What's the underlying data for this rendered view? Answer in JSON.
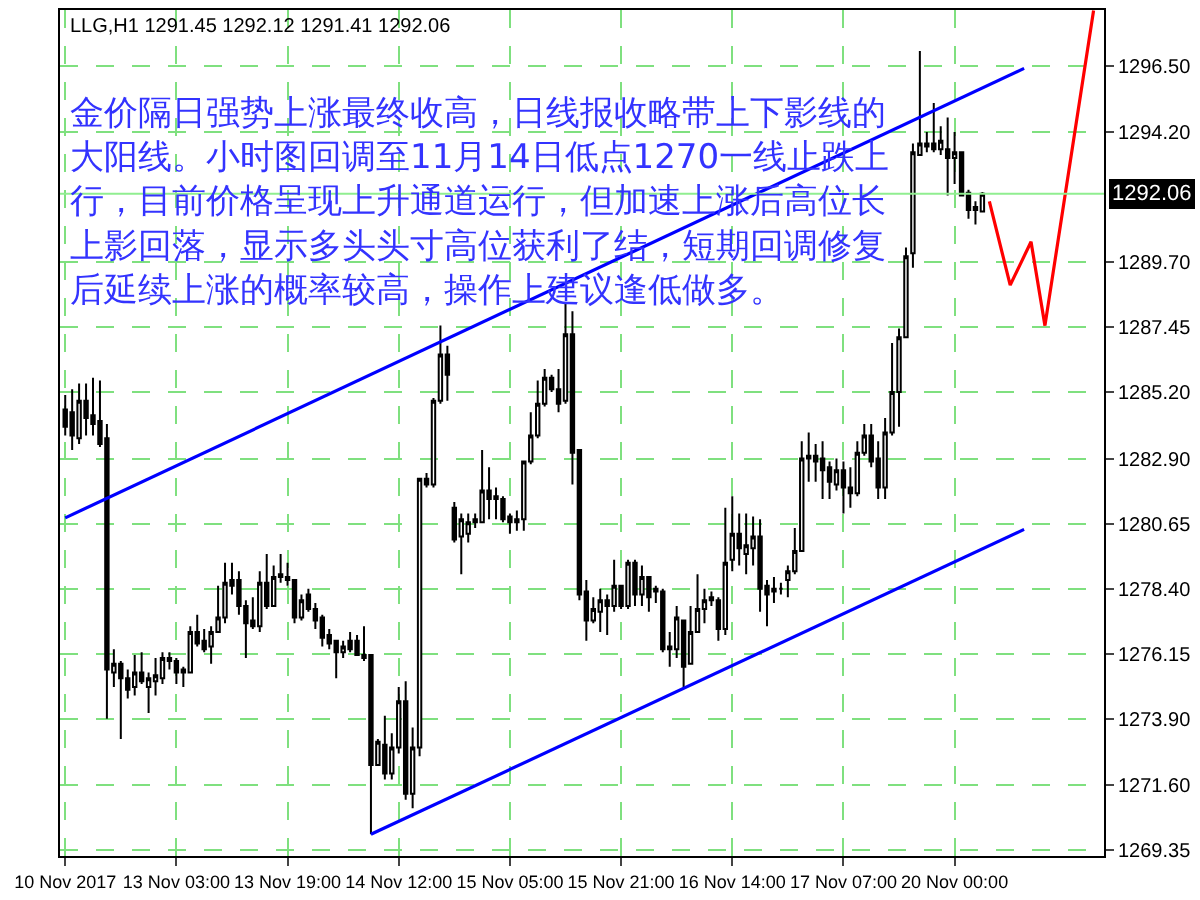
{
  "chart_data": {
    "type": "candlestick",
    "color": "#000000",
    "annotations": [
      "LLG,H1 1291.45 1292.12 1291.41 1292.06",
      "金价隔日强势上涨最终收高，日线报收略带上下影线的大阳线。小时图回调至11月14日低点1270一线止跌上行，目前价格呈现上升通道运行，但加速上涨后高位长上影回落，显示多头头寸高位获利了结，短期回调修复后延续上涨的概率较高，操作上建议逢低做多。"
    ],
    "categories": [
      "10 Nov 2017",
      null,
      null,
      null,
      null,
      null,
      null,
      null,
      null,
      null,
      null,
      null,
      null,
      null,
      null,
      null,
      "13 Nov 03:00",
      null,
      null,
      null,
      null,
      null,
      null,
      null,
      null,
      null,
      null,
      null,
      null,
      null,
      null,
      null,
      "13 Nov 19:00",
      null,
      null,
      null,
      null,
      null,
      null,
      null,
      null,
      null,
      null,
      null,
      null,
      null,
      null,
      null,
      "14 Nov 12:00",
      null,
      null,
      null,
      null,
      null,
      null,
      null,
      null,
      null,
      null,
      null,
      null,
      null,
      null,
      null,
      "15 Nov 05:00",
      null,
      null,
      null,
      null,
      null,
      null,
      null,
      null,
      null,
      null,
      null,
      null,
      null,
      null,
      null,
      "15 Nov 21:00",
      null,
      null,
      null,
      null,
      null,
      null,
      null,
      null,
      null,
      null,
      null,
      null,
      null,
      null,
      null,
      "16 Nov 14:00",
      null,
      null,
      null,
      null,
      null,
      null,
      null,
      null,
      null,
      null,
      null,
      null,
      null,
      null,
      null,
      "17 Nov 07:00",
      null,
      null,
      null,
      null,
      null,
      null,
      null,
      null,
      null,
      null,
      null,
      null,
      null,
      null,
      null,
      "20 Nov 00:00",
      null,
      null,
      null,
      null,
      null,
      null,
      null,
      null,
      null,
      null,
      null,
      null,
      null,
      null,
      null,
      null,
      null,
      null,
      null,
      null,
      null
    ],
    "ohlc": [
      [
        1284.6,
        1285.1,
        1283.7,
        1284.0
      ],
      [
        1284.5,
        1285.3,
        1283.2,
        1283.7
      ],
      [
        1283.6,
        1285.5,
        1283.4,
        1284.9
      ],
      [
        1284.9,
        1285.5,
        1283.7,
        1284.3
      ],
      [
        1284.4,
        1285.7,
        1283.7,
        1284.1
      ],
      [
        1284.2,
        1285.6,
        1283.3,
        1283.4
      ],
      [
        1283.6,
        1284.1,
        1273.9,
        1275.6
      ],
      [
        1275.5,
        1276.3,
        1275.0,
        1275.8
      ],
      [
        1275.8,
        1275.9,
        1273.2,
        1275.3
      ],
      [
        1275.3,
        1275.6,
        1274.6,
        1274.9
      ],
      [
        1275.0,
        1276.1,
        1274.7,
        1275.5
      ],
      [
        1275.5,
        1276.2,
        1275.1,
        1275.2
      ],
      [
        1275.0,
        1275.5,
        1274.1,
        1275.3
      ],
      [
        1275.2,
        1276.0,
        1274.7,
        1275.4
      ],
      [
        1275.3,
        1276.2,
        1275.1,
        1276.0
      ],
      [
        1275.9,
        1276.2,
        1275.6,
        1276.0
      ],
      [
        1275.9,
        1276.0,
        1275.1,
        1275.5
      ],
      [
        1275.6,
        1275.7,
        1275.0,
        1275.5
      ],
      [
        1275.5,
        1277.1,
        1275.5,
        1276.9
      ],
      [
        1276.9,
        1277.5,
        1276.4,
        1276.5
      ],
      [
        1276.6,
        1277.0,
        1276.2,
        1276.3
      ],
      [
        1276.4,
        1277.1,
        1275.8,
        1276.9
      ],
      [
        1276.9,
        1278.5,
        1276.9,
        1277.4
      ],
      [
        1277.4,
        1279.3,
        1277.2,
        1278.6
      ],
      [
        1278.7,
        1279.3,
        1278.2,
        1278.5
      ],
      [
        1278.7,
        1279.0,
        1277.5,
        1277.8
      ],
      [
        1277.8,
        1278.0,
        1276.0,
        1277.2
      ],
      [
        1277.3,
        1278.1,
        1277.0,
        1277.1
      ],
      [
        1277.1,
        1279.0,
        1276.9,
        1278.6
      ],
      [
        1278.6,
        1279.6,
        1277.7,
        1277.8
      ],
      [
        1277.8,
        1279.2,
        1277.8,
        1278.8
      ],
      [
        1278.8,
        1279.6,
        1278.6,
        1278.9
      ],
      [
        1278.8,
        1279.3,
        1278.5,
        1278.7
      ],
      [
        1278.7,
        1278.7,
        1277.2,
        1277.4
      ],
      [
        1277.4,
        1278.2,
        1277.3,
        1278.0
      ],
      [
        1278.2,
        1278.4,
        1277.6,
        1277.7
      ],
      [
        1277.7,
        1277.9,
        1277.0,
        1277.3
      ],
      [
        1277.4,
        1277.5,
        1276.4,
        1276.7
      ],
      [
        1276.8,
        1277.0,
        1276.3,
        1276.5
      ],
      [
        1276.6,
        1276.6,
        1275.3,
        1276.2
      ],
      [
        1276.2,
        1276.6,
        1276.0,
        1276.4
      ],
      [
        1276.6,
        1276.9,
        1276.2,
        1276.3
      ],
      [
        1276.6,
        1276.8,
        1276.1,
        1276.1
      ],
      [
        1276.1,
        1277.1,
        1275.9,
        1276.0
      ],
      [
        1276.1,
        1276.1,
        1269.9,
        1272.3
      ],
      [
        1272.3,
        1273.2,
        1272.3,
        1273.1
      ],
      [
        1273.0,
        1274.0,
        1271.8,
        1272.0
      ],
      [
        1272.0,
        1273.4,
        1271.8,
        1272.9
      ],
      [
        1272.9,
        1275.0,
        1272.7,
        1274.5
      ],
      [
        1274.5,
        1275.2,
        1271.1,
        1271.3
      ],
      [
        1271.3,
        1273.6,
        1270.8,
        1272.9
      ],
      [
        1272.9,
        1282.2,
        1272.6,
        1282.2
      ],
      [
        1282.2,
        1282.4,
        1281.9,
        1282.0
      ],
      [
        1282.0,
        1285.0,
        1281.9,
        1284.9
      ],
      [
        1284.9,
        1287.5,
        1284.8,
        1286.5
      ],
      [
        1286.5,
        1286.8,
        1284.9,
        1285.8
      ],
      [
        1281.2,
        1281.4,
        1280.0,
        1280.1
      ],
      [
        1280.2,
        1281.0,
        1278.9,
        1280.8
      ],
      [
        1280.3,
        1281.0,
        1280.0,
        1280.7
      ],
      [
        1280.8,
        1281.0,
        1280.5,
        1280.7
      ],
      [
        1280.7,
        1283.2,
        1280.7,
        1281.8
      ],
      [
        1281.8,
        1282.6,
        1280.8,
        1281.5
      ],
      [
        1281.6,
        1281.9,
        1280.8,
        1281.5
      ],
      [
        1281.5,
        1281.6,
        1280.7,
        1280.8
      ],
      [
        1280.9,
        1281.0,
        1280.3,
        1280.7
      ],
      [
        1280.7,
        1281.1,
        1280.4,
        1280.8
      ],
      [
        1280.8,
        1282.8,
        1280.4,
        1282.8
      ],
      [
        1282.8,
        1284.5,
        1282.7,
        1283.7
      ],
      [
        1283.7,
        1285.6,
        1283.6,
        1284.8
      ],
      [
        1284.8,
        1286.0,
        1284.7,
        1285.7
      ],
      [
        1285.7,
        1285.8,
        1285.2,
        1285.3
      ],
      [
        1285.3,
        1286.0,
        1284.5,
        1284.8
      ],
      [
        1284.9,
        1288.3,
        1284.8,
        1287.2
      ],
      [
        1287.2,
        1288.0,
        1282.0,
        1283.1
      ],
      [
        1283.2,
        1283.2,
        1278.0,
        1278.2
      ],
      [
        1278.3,
        1278.7,
        1276.6,
        1277.3
      ],
      [
        1277.3,
        1278.1,
        1277.2,
        1277.7
      ],
      [
        1277.6,
        1278.4,
        1276.9,
        1278.0
      ],
      [
        1278.0,
        1278.2,
        1276.8,
        1277.8
      ],
      [
        1277.8,
        1279.4,
        1277.6,
        1278.5
      ],
      [
        1278.5,
        1278.5,
        1277.7,
        1277.8
      ],
      [
        1277.8,
        1279.4,
        1277.7,
        1279.3
      ],
      [
        1279.3,
        1279.4,
        1277.8,
        1278.2
      ],
      [
        1278.2,
        1279.2,
        1277.8,
        1278.8
      ],
      [
        1278.8,
        1278.8,
        1277.6,
        1278.1
      ],
      [
        1278.4,
        1278.5,
        1277.9,
        1278.3
      ],
      [
        1278.3,
        1278.4,
        1276.2,
        1276.3
      ],
      [
        1276.4,
        1276.9,
        1275.7,
        1276.3
      ],
      [
        1276.3,
        1277.8,
        1276.0,
        1277.4
      ],
      [
        1277.3,
        1277.3,
        1275.0,
        1275.7
      ],
      [
        1275.8,
        1277.8,
        1275.8,
        1276.9
      ],
      [
        1276.9,
        1278.9,
        1276.9,
        1277.7
      ],
      [
        1277.7,
        1278.4,
        1277.2,
        1278.0
      ],
      [
        1278.0,
        1278.3,
        1277.8,
        1278.1
      ],
      [
        1278.0,
        1278.1,
        1276.6,
        1277.0
      ],
      [
        1277.0,
        1281.2,
        1276.8,
        1279.3
      ],
      [
        1279.4,
        1281.6,
        1279.0,
        1280.3
      ],
      [
        1280.3,
        1281.0,
        1279.2,
        1279.8
      ],
      [
        1279.6,
        1281.0,
        1278.9,
        1279.9
      ],
      [
        1279.8,
        1280.9,
        1279.2,
        1280.2
      ],
      [
        1280.2,
        1280.8,
        1277.6,
        1278.4
      ],
      [
        1278.5,
        1278.7,
        1277.1,
        1278.2
      ],
      [
        1278.3,
        1278.8,
        1277.9,
        1278.4
      ],
      [
        1278.4,
        1278.6,
        1278.2,
        1278.4
      ],
      [
        1278.7,
        1279.2,
        1278.1,
        1279.0
      ],
      [
        1279.0,
        1280.5,
        1278.9,
        1279.7
      ],
      [
        1279.7,
        1283.5,
        1279.7,
        1282.9
      ],
      [
        1282.9,
        1283.8,
        1282.1,
        1283.0
      ],
      [
        1283.0,
        1283.4,
        1282.1,
        1282.8
      ],
      [
        1282.9,
        1283.5,
        1281.5,
        1282.5
      ],
      [
        1282.6,
        1282.8,
        1281.5,
        1282.1
      ],
      [
        1282.0,
        1282.9,
        1281.8,
        1282.5
      ],
      [
        1282.5,
        1282.8,
        1281.0,
        1281.9
      ],
      [
        1281.9,
        1282.6,
        1281.2,
        1281.7
      ],
      [
        1281.7,
        1283.5,
        1281.6,
        1283.1
      ],
      [
        1283.1,
        1284.1,
        1283.0,
        1283.7
      ],
      [
        1283.7,
        1284.1,
        1282.6,
        1282.8
      ],
      [
        1282.9,
        1283.5,
        1281.5,
        1281.9
      ],
      [
        1281.9,
        1284.3,
        1281.5,
        1283.8
      ],
      [
        1283.8,
        1286.9,
        1283.7,
        1285.2
      ],
      [
        1285.2,
        1287.4,
        1284.0,
        1287.1
      ],
      [
        1287.1,
        1290.2,
        1287.1,
        1289.9
      ],
      [
        1290.0,
        1293.8,
        1289.5,
        1293.5
      ],
      [
        1293.4,
        1297.0,
        1293.4,
        1293.8
      ],
      [
        1293.8,
        1294.2,
        1293.5,
        1293.7
      ],
      [
        1293.8,
        1295.2,
        1293.5,
        1293.6
      ],
      [
        1293.6,
        1294.4,
        1293.4,
        1293.9
      ],
      [
        1293.6,
        1294.7,
        1292.0,
        1293.3
      ],
      [
        1293.3,
        1294.2,
        1292.4,
        1293.5
      ],
      [
        1293.5,
        1293.5,
        1292.0,
        1292.0
      ],
      [
        1292.1,
        1292.2,
        1291.2,
        1291.5
      ],
      [
        1291.6,
        1291.8,
        1291.0,
        1291.5
      ],
      [
        1291.45,
        1292.12,
        1291.41,
        1292.06
      ],
      null,
      null,
      null,
      null,
      null,
      null,
      null,
      null,
      null,
      null,
      null,
      null,
      null,
      null,
      null,
      null,
      null
    ],
    "series": [
      {
        "type": "line",
        "color": "#0000ff",
        "values": [
          1280.85,
          null,
          null,
          null,
          null,
          null,
          null,
          null,
          null,
          null,
          null,
          null,
          null,
          null,
          null,
          null,
          null,
          null,
          null,
          null,
          null,
          null,
          null,
          null,
          null,
          null,
          null,
          null,
          null,
          null,
          null,
          null,
          null,
          null,
          null,
          null,
          null,
          null,
          null,
          null,
          null,
          null,
          null,
          null,
          null,
          null,
          null,
          null,
          null,
          null,
          null,
          null,
          null,
          null,
          null,
          null,
          null,
          null,
          null,
          null,
          null,
          null,
          null,
          null,
          null,
          null,
          null,
          null,
          null,
          null,
          null,
          null,
          null,
          null,
          null,
          null,
          null,
          null,
          null,
          null,
          null,
          null,
          null,
          null,
          null,
          null,
          null,
          null,
          null,
          null,
          null,
          null,
          null,
          null,
          null,
          null,
          null,
          null,
          null,
          null,
          null,
          null,
          null,
          null,
          null,
          null,
          null,
          null,
          null,
          null,
          null,
          null,
          null,
          null,
          null,
          null,
          null,
          null,
          null,
          null,
          null,
          null,
          null,
          null,
          null,
          null,
          null,
          null,
          null,
          null,
          null,
          null,
          null,
          null,
          null,
          null,
          null,
          null,
          1296.4,
          null,
          null,
          null,
          null,
          null,
          null,
          null,
          null,
          null,
          null,
          null
        ]
      },
      {
        "type": "line",
        "color": "#0000ff",
        "values": [
          null,
          null,
          null,
          null,
          null,
          null,
          null,
          null,
          null,
          null,
          null,
          null,
          null,
          null,
          null,
          null,
          null,
          null,
          null,
          null,
          null,
          null,
          null,
          null,
          null,
          null,
          null,
          null,
          null,
          null,
          null,
          null,
          null,
          null,
          null,
          null,
          null,
          null,
          null,
          null,
          null,
          null,
          null,
          null,
          1269.9,
          null,
          null,
          null,
          null,
          null,
          null,
          null,
          null,
          null,
          null,
          null,
          null,
          null,
          null,
          null,
          null,
          null,
          null,
          null,
          null,
          null,
          null,
          null,
          null,
          null,
          null,
          null,
          null,
          null,
          null,
          null,
          null,
          null,
          null,
          null,
          null,
          null,
          null,
          null,
          null,
          null,
          null,
          null,
          null,
          null,
          null,
          null,
          null,
          null,
          null,
          null,
          null,
          null,
          null,
          null,
          null,
          null,
          null,
          null,
          null,
          null,
          null,
          null,
          null,
          null,
          null,
          null,
          null,
          null,
          null,
          null,
          null,
          null,
          null,
          null,
          null,
          null,
          null,
          null,
          null,
          null,
          null,
          null,
          null,
          null,
          null,
          null,
          null,
          null,
          null,
          null,
          null,
          null,
          1280.45,
          null,
          null,
          null,
          null,
          null,
          null,
          null,
          null,
          null,
          null,
          null
        ]
      },
      {
        "type": "line",
        "color": "#ff0000",
        "values": [
          null,
          null,
          null,
          null,
          null,
          null,
          null,
          null,
          null,
          null,
          null,
          null,
          null,
          null,
          null,
          null,
          null,
          null,
          null,
          null,
          null,
          null,
          null,
          null,
          null,
          null,
          null,
          null,
          null,
          null,
          null,
          null,
          null,
          null,
          null,
          null,
          null,
          null,
          null,
          null,
          null,
          null,
          null,
          null,
          null,
          null,
          null,
          null,
          null,
          null,
          null,
          null,
          null,
          null,
          null,
          null,
          null,
          null,
          null,
          null,
          null,
          null,
          null,
          null,
          null,
          null,
          null,
          null,
          null,
          null,
          null,
          null,
          null,
          null,
          null,
          null,
          null,
          null,
          null,
          null,
          null,
          null,
          null,
          null,
          null,
          null,
          null,
          null,
          null,
          null,
          null,
          null,
          null,
          null,
          null,
          null,
          null,
          null,
          null,
          null,
          null,
          null,
          null,
          null,
          null,
          null,
          null,
          null,
          null,
          null,
          null,
          null,
          null,
          null,
          null,
          null,
          null,
          null,
          null,
          null,
          null,
          null,
          null,
          null,
          null,
          null,
          null,
          null,
          null,
          null,
          null,
          null,
          null,
          1291.8,
          null,
          null,
          1288.9,
          null,
          null,
          1290.4,
          null,
          1287.5,
          null,
          null,
          null,
          null,
          null,
          null,
          1298.4,
          null
        ]
      }
    ],
    "ref_lines": [
      {
        "axis": "y",
        "value": 1292.06,
        "label": "1292.06",
        "color": "#90ee90"
      }
    ],
    "ylim": [
      1269.15,
      1298.42
    ],
    "yticks": [
      {
        "value": 1296.5,
        "label": "1296.50"
      },
      {
        "value": 1294.2,
        "label": "1294.20"
      },
      {
        "value": 1289.7,
        "label": "1289.70"
      },
      1287.45,
      {
        "value": 1285.2,
        "label": "1285.20"
      },
      {
        "value": 1282.9,
        "label": "1282.90"
      },
      1280.65,
      {
        "value": 1278.4,
        "label": "1278.40"
      },
      1276.15,
      {
        "value": 1273.9,
        "label": "1273.90"
      },
      {
        "value": 1271.6,
        "label": "1271.60"
      },
      1269.35
    ],
    "grid": true
  }
}
